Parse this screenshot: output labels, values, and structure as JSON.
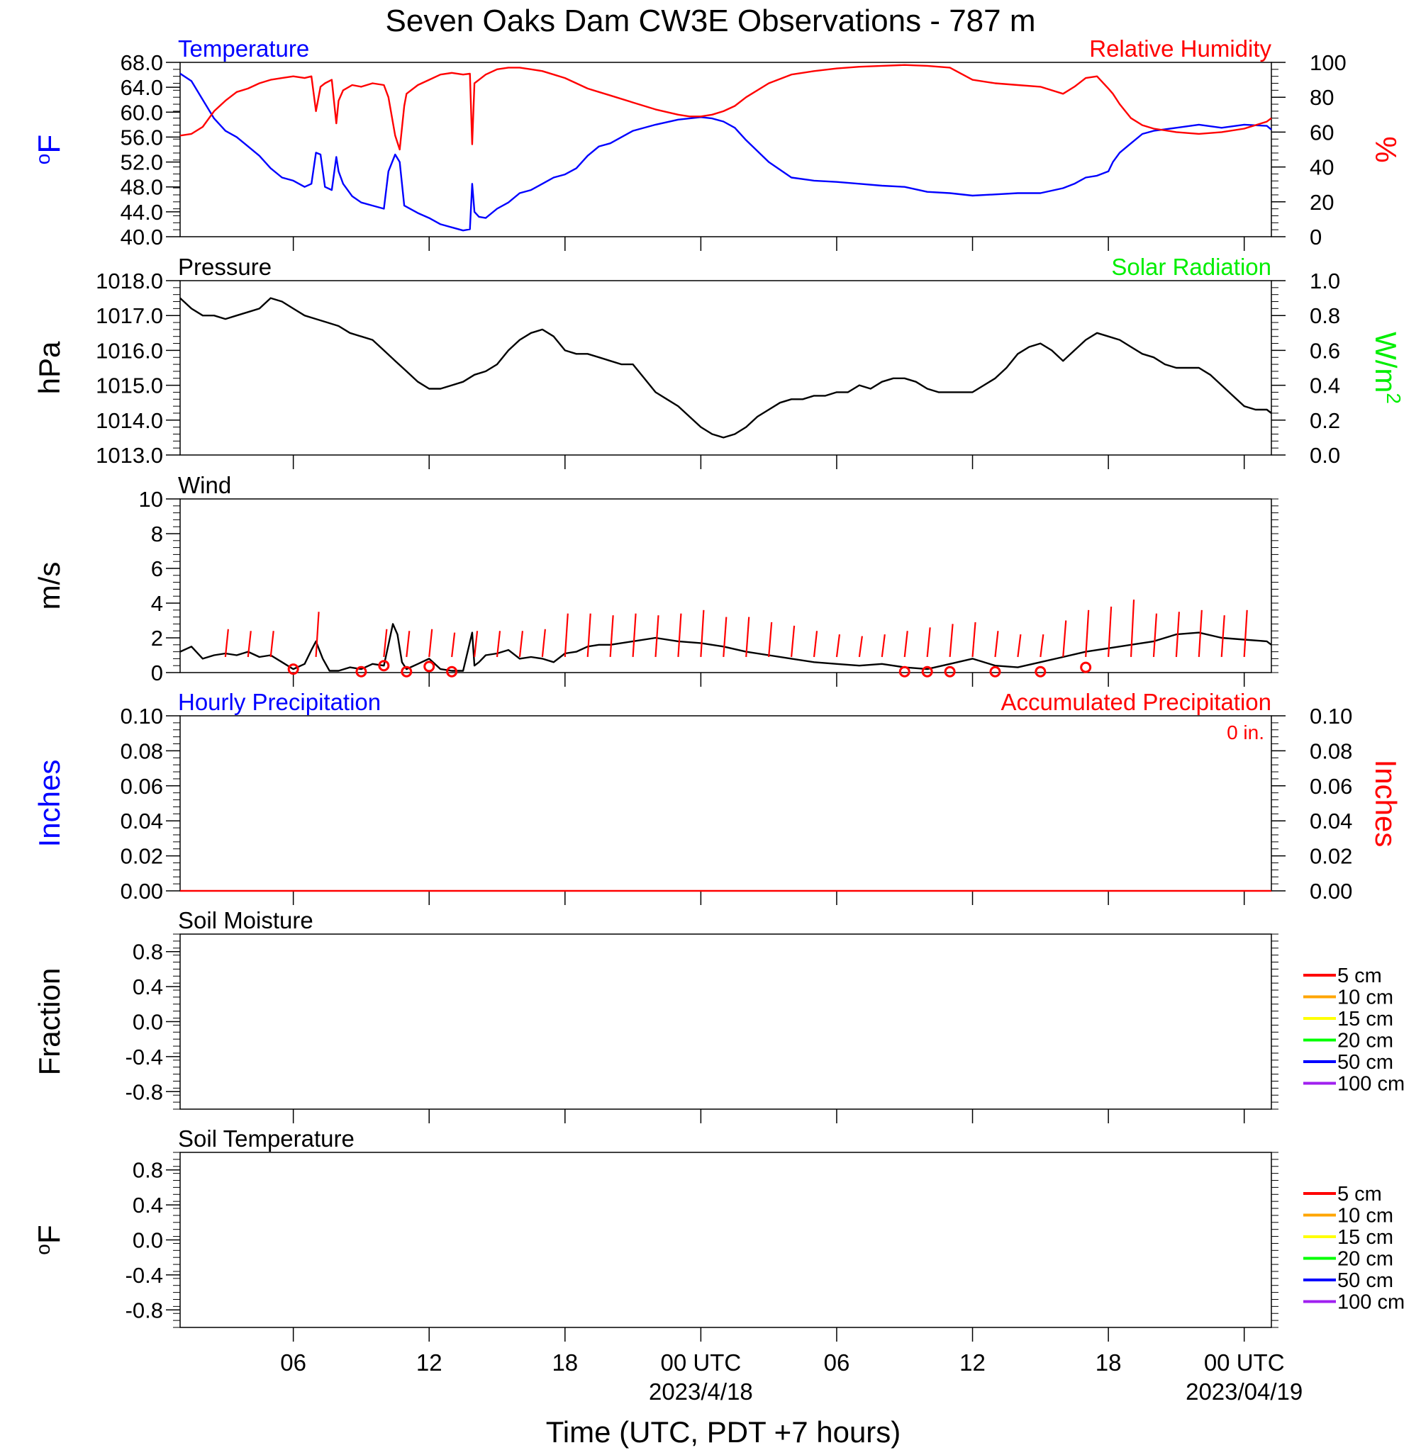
{
  "title": "Seven Oaks Dam CW3E Observations - 787 m",
  "xlabel": "Time (UTC, PDT +7 hours)",
  "xticks": [
    {
      "hour": 6,
      "label": "06",
      "date": ""
    },
    {
      "hour": 12,
      "label": "12",
      "date": ""
    },
    {
      "hour": 18,
      "label": "18",
      "date": ""
    },
    {
      "hour": 24,
      "label": "00 UTC",
      "date": "2023/4/18"
    },
    {
      "hour": 30,
      "label": "06",
      "date": ""
    },
    {
      "hour": 36,
      "label": "12",
      "date": ""
    },
    {
      "hour": 42,
      "label": "18",
      "date": ""
    },
    {
      "hour": 48,
      "label": "00 UTC",
      "date": "2023/04/19"
    }
  ],
  "xrange_hours": [
    1,
    49.2
  ],
  "colors": {
    "temperature": "#0000ff",
    "humidity": "#ff0000",
    "pressure": "#000000",
    "solar": "#00ee00",
    "wind": "#000000",
    "barb": "#ff0000",
    "precip": "#ff0000"
  },
  "legend_items": [
    {
      "label": "5 cm",
      "color": "#ff0000"
    },
    {
      "label": "10 cm",
      "color": "#ffa500"
    },
    {
      "label": "15 cm",
      "color": "#ffff00"
    },
    {
      "label": "20 cm",
      "color": "#00ff00"
    },
    {
      "label": "50 cm",
      "color": "#0000ff"
    },
    {
      "label": "100 cm",
      "color": "#a020f0"
    }
  ],
  "chart_data": [
    {
      "type": "line",
      "panel": "temperature",
      "title_left": "Temperature",
      "title_right": "Relative Humidity",
      "ylabel_left": "°F",
      "ylabel_right": "%",
      "ylim_left": [
        40,
        68
      ],
      "ylim_right": [
        0,
        100
      ],
      "yticks_left": [
        "40.0",
        "44.0",
        "48.0",
        "52.0",
        "56.0",
        "60.0",
        "64.0",
        "68.0"
      ],
      "yticks_right": [
        "0",
        "20",
        "40",
        "60",
        "80",
        "100"
      ],
      "series": [
        {
          "axis": "left",
          "color": "#0000ff",
          "x": [
            1.0,
            1.5,
            2.0,
            2.5,
            3.0,
            3.5,
            4.0,
            4.5,
            5.0,
            5.5,
            6.0,
            6.5,
            6.8,
            7.0,
            7.2,
            7.4,
            7.7,
            7.9,
            8.0,
            8.2,
            8.6,
            9.0,
            9.5,
            10.0,
            10.2,
            10.5,
            10.7,
            10.9,
            11.0,
            11.5,
            12.0,
            12.5,
            13.0,
            13.5,
            13.8,
            13.9,
            14.0,
            14.2,
            14.5,
            15.0,
            15.5,
            16.0,
            16.5,
            17.0,
            17.5,
            18.0,
            18.5,
            19.0,
            19.5,
            20.0,
            21.0,
            22.0,
            23.0,
            23.5,
            24.0,
            24.5,
            25.0,
            25.5,
            26.0,
            27.0,
            28.0,
            29.0,
            30.0,
            31.0,
            32.0,
            33.0,
            34.0,
            35.0,
            36.0,
            37.0,
            38.0,
            39.0,
            40.0,
            40.5,
            41.0,
            41.5,
            42.0,
            42.2,
            42.5,
            43.0,
            43.5,
            44.0,
            45.0,
            46.0,
            47.0,
            48.0,
            49.0,
            49.2
          ],
          "y": [
            66.2,
            65.0,
            62.0,
            59.0,
            57.0,
            56.0,
            54.5,
            53.0,
            51.0,
            49.5,
            49.0,
            48.0,
            48.5,
            53.5,
            53.2,
            48.0,
            47.5,
            52.8,
            50.5,
            48.5,
            46.5,
            45.5,
            45.0,
            44.5,
            50.5,
            53.2,
            52.0,
            45.0,
            44.8,
            43.8,
            43.0,
            42.0,
            41.5,
            41.0,
            41.2,
            48.5,
            44.0,
            43.2,
            43.0,
            44.5,
            45.5,
            47.0,
            47.5,
            48.5,
            49.5,
            50.0,
            51.0,
            53.0,
            54.5,
            55.0,
            57.0,
            58.0,
            58.8,
            59.0,
            59.2,
            59.0,
            58.5,
            57.5,
            55.5,
            52.0,
            49.5,
            49.0,
            48.8,
            48.5,
            48.2,
            48.0,
            47.2,
            47.0,
            46.6,
            46.8,
            47.0,
            47.0,
            47.8,
            48.5,
            49.5,
            49.8,
            50.5,
            52.0,
            53.5,
            55.0,
            56.5,
            57.0,
            57.5,
            58.0,
            57.5,
            58.0,
            57.8,
            57.2
          ]
        },
        {
          "axis": "right",
          "color": "#ff0000",
          "x": [
            1.0,
            1.5,
            2.0,
            2.5,
            3.0,
            3.5,
            4.0,
            4.5,
            5.0,
            5.5,
            6.0,
            6.5,
            6.8,
            7.0,
            7.2,
            7.4,
            7.7,
            7.9,
            8.0,
            8.2,
            8.6,
            9.0,
            9.5,
            10.0,
            10.2,
            10.5,
            10.7,
            10.9,
            11.0,
            11.5,
            12.0,
            12.5,
            13.0,
            13.5,
            13.8,
            13.9,
            14.0,
            14.2,
            14.5,
            15.0,
            15.5,
            16.0,
            16.5,
            17.0,
            17.5,
            18.0,
            18.5,
            19.0,
            19.5,
            20.0,
            21.0,
            22.0,
            23.0,
            23.5,
            24.0,
            24.5,
            25.0,
            25.5,
            26.0,
            27.0,
            28.0,
            29.0,
            30.0,
            31.0,
            32.0,
            33.0,
            34.0,
            35.0,
            36.0,
            37.0,
            38.0,
            39.0,
            40.0,
            40.5,
            41.0,
            41.5,
            42.0,
            42.2,
            42.5,
            43.0,
            43.5,
            44.0,
            45.0,
            46.0,
            47.0,
            48.0,
            49.0,
            49.2
          ],
          "y": [
            58.0,
            59.0,
            63.0,
            72.0,
            78.0,
            83.0,
            85.0,
            88.0,
            90.0,
            91.0,
            92.0,
            91.0,
            92.0,
            72.0,
            86.0,
            88.0,
            90.0,
            65.0,
            78.0,
            84.0,
            87.0,
            86.0,
            88.0,
            87.0,
            80.0,
            58.0,
            50.0,
            75.0,
            82.0,
            87.0,
            90.0,
            93.0,
            94.0,
            93.0,
            93.5,
            53.0,
            88.0,
            90.0,
            93.0,
            96.0,
            97.0,
            97.0,
            96.0,
            95.0,
            93.0,
            91.0,
            88.0,
            85.0,
            83.0,
            81.0,
            77.0,
            73.0,
            70.0,
            69.0,
            69.0,
            70.0,
            72.0,
            75.0,
            80.0,
            88.0,
            93.0,
            95.0,
            96.5,
            97.5,
            98.0,
            98.5,
            98.0,
            97.0,
            90.0,
            88.0,
            87.0,
            86.0,
            82.0,
            86.0,
            91.0,
            92.0,
            85.0,
            82.0,
            76.0,
            68.0,
            64.0,
            62.0,
            60.0,
            59.0,
            60.0,
            62.0,
            66.0,
            68.0
          ]
        }
      ]
    },
    {
      "type": "line",
      "panel": "pressure",
      "title_left": "Pressure",
      "title_right": "Solar Radiation",
      "ylabel_left": "hPa",
      "ylabel_right": "W/m",
      "ylabel_right_sup": "2",
      "ylim_left": [
        1013,
        1018
      ],
      "ylim_right": [
        0,
        1
      ],
      "yticks_left": [
        "1013.0",
        "1014.0",
        "1015.0",
        "1016.0",
        "1017.0",
        "1018.0"
      ],
      "yticks_right": [
        "0.0",
        "0.2",
        "0.4",
        "0.6",
        "0.8",
        "1.0"
      ],
      "series": [
        {
          "axis": "left",
          "color": "#000000",
          "x": [
            1.0,
            1.5,
            2.0,
            2.5,
            3.0,
            3.5,
            4.0,
            4.5,
            5.0,
            5.5,
            6.0,
            6.5,
            7.0,
            7.5,
            8.0,
            8.5,
            9.0,
            9.5,
            10.0,
            10.5,
            11.0,
            11.5,
            12.0,
            12.5,
            13.0,
            13.5,
            14.0,
            14.5,
            15.0,
            15.5,
            16.0,
            16.5,
            17.0,
            17.5,
            18.0,
            18.5,
            19.0,
            19.5,
            20.0,
            20.5,
            21.0,
            21.5,
            22.0,
            22.5,
            23.0,
            23.5,
            24.0,
            24.5,
            25.0,
            25.5,
            26.0,
            26.5,
            27.0,
            27.5,
            28.0,
            28.5,
            29.0,
            29.5,
            30.0,
            30.5,
            31.0,
            31.5,
            32.0,
            32.5,
            33.0,
            33.5,
            34.0,
            34.5,
            35.0,
            35.5,
            36.0,
            36.5,
            37.0,
            37.5,
            38.0,
            38.5,
            39.0,
            39.5,
            40.0,
            40.5,
            41.0,
            41.5,
            42.0,
            42.5,
            43.0,
            43.5,
            44.0,
            44.5,
            45.0,
            45.5,
            46.0,
            46.5,
            47.0,
            47.5,
            48.0,
            48.5,
            49.0,
            49.2
          ],
          "y": [
            1017.5,
            1017.2,
            1017.0,
            1017.0,
            1016.9,
            1017.0,
            1017.1,
            1017.2,
            1017.5,
            1017.4,
            1017.2,
            1017.0,
            1016.9,
            1016.8,
            1016.7,
            1016.5,
            1016.4,
            1016.3,
            1016.0,
            1015.7,
            1015.4,
            1015.1,
            1014.9,
            1014.9,
            1015.0,
            1015.1,
            1015.3,
            1015.4,
            1015.6,
            1016.0,
            1016.3,
            1016.5,
            1016.6,
            1016.4,
            1016.0,
            1015.9,
            1015.9,
            1015.8,
            1015.7,
            1015.6,
            1015.6,
            1015.2,
            1014.8,
            1014.6,
            1014.4,
            1014.1,
            1013.8,
            1013.6,
            1013.5,
            1013.6,
            1013.8,
            1014.1,
            1014.3,
            1014.5,
            1014.6,
            1014.6,
            1014.7,
            1014.7,
            1014.8,
            1014.8,
            1015.0,
            1014.9,
            1015.1,
            1015.2,
            1015.2,
            1015.1,
            1014.9,
            1014.8,
            1014.8,
            1014.8,
            1014.8,
            1015.0,
            1015.2,
            1015.5,
            1015.9,
            1016.1,
            1016.2,
            1016.0,
            1015.7,
            1016.0,
            1016.3,
            1016.5,
            1016.4,
            1016.3,
            1016.1,
            1015.9,
            1015.8,
            1015.6,
            1015.5,
            1015.5,
            1015.5,
            1015.3,
            1015.0,
            1014.7,
            1014.4,
            1014.3,
            1014.3,
            1014.2
          ]
        }
      ]
    },
    {
      "type": "line",
      "panel": "wind",
      "title_left": "Wind",
      "ylabel_left": "m/s",
      "ylim_left": [
        0,
        10
      ],
      "yticks_left": [
        "0",
        "2",
        "4",
        "6",
        "8",
        "10"
      ],
      "series": [
        {
          "axis": "left",
          "color": "#000000",
          "x": [
            1.0,
            1.5,
            2.0,
            2.5,
            3.0,
            3.5,
            4.0,
            4.5,
            5.0,
            5.5,
            6.0,
            6.5,
            6.8,
            7.0,
            7.3,
            7.6,
            8.0,
            8.5,
            9.0,
            9.5,
            10.0,
            10.4,
            10.6,
            10.8,
            11.0,
            11.5,
            12.0,
            12.5,
            13.0,
            13.5,
            13.9,
            14.0,
            14.2,
            14.5,
            15.0,
            15.5,
            16.0,
            16.5,
            17.0,
            17.5,
            18.0,
            18.5,
            19.0,
            19.5,
            20.0,
            21.0,
            22.0,
            23.0,
            24.0,
            25.0,
            26.0,
            27.0,
            28.0,
            29.0,
            30.0,
            31.0,
            32.0,
            33.0,
            34.0,
            35.0,
            36.0,
            37.0,
            38.0,
            39.0,
            40.0,
            41.0,
            42.0,
            43.0,
            44.0,
            45.0,
            46.0,
            47.0,
            48.0,
            49.0,
            49.2
          ],
          "y": [
            1.2,
            1.5,
            0.8,
            1.0,
            1.1,
            1.0,
            1.2,
            0.9,
            1.0,
            0.6,
            0.2,
            0.5,
            1.3,
            1.8,
            0.8,
            0.1,
            0.1,
            0.3,
            0.2,
            0.5,
            0.4,
            2.8,
            2.2,
            0.6,
            0.2,
            0.5,
            0.8,
            0.2,
            0.1,
            0.1,
            2.3,
            0.4,
            0.6,
            1.0,
            1.1,
            1.3,
            0.8,
            0.9,
            0.8,
            0.6,
            1.1,
            1.2,
            1.5,
            1.6,
            1.6,
            1.8,
            2.0,
            1.8,
            1.7,
            1.5,
            1.2,
            1.0,
            0.8,
            0.6,
            0.5,
            0.4,
            0.5,
            0.3,
            0.2,
            0.5,
            0.8,
            0.4,
            0.3,
            0.6,
            0.9,
            1.2,
            1.4,
            1.6,
            1.8,
            2.2,
            2.3,
            2.0,
            1.9,
            1.8,
            1.6
          ]
        },
        {
          "kind": "barbs",
          "color": "#ff0000",
          "x": [
            3,
            4,
            5,
            7,
            10,
            11,
            12,
            13,
            14,
            15,
            16,
            17,
            18,
            19,
            20,
            21,
            22,
            23,
            24,
            25,
            26,
            27,
            28,
            29,
            30,
            31,
            32,
            33,
            34,
            35,
            36,
            37,
            38,
            39,
            40,
            41,
            42,
            43,
            44,
            45,
            46,
            47,
            48
          ],
          "y": [
            2.5,
            2.4,
            2.4,
            3.5,
            2.5,
            2.4,
            2.5,
            2.3,
            2.4,
            2.4,
            2.4,
            2.5,
            3.4,
            3.4,
            3.3,
            3.4,
            3.3,
            3.4,
            3.6,
            3.2,
            3.2,
            2.9,
            2.7,
            2.4,
            2.2,
            2.1,
            2.2,
            2.4,
            2.6,
            2.8,
            2.9,
            2.4,
            2.2,
            2.2,
            3.0,
            3.6,
            3.8,
            4.2,
            3.4,
            3.5,
            3.6,
            3.3,
            3.6
          ]
        },
        {
          "kind": "calm",
          "color": "#ff0000",
          "x": [
            6,
            9,
            10,
            11,
            12,
            13,
            33,
            34,
            35,
            37,
            39,
            41
          ],
          "y": [
            0.2,
            0.05,
            0.4,
            0.05,
            0.35,
            0.05,
            0.05,
            0.05,
            0.05,
            0.05,
            0.05,
            0.3
          ]
        }
      ]
    },
    {
      "type": "line",
      "panel": "precipitation",
      "title_left": "Hourly Precipitation",
      "title_right": "Accumulated Precipitation",
      "annotation": "0 in.",
      "ylabel_left": "Inches",
      "ylabel_right": "Inches",
      "ylim_left": [
        0,
        0.1
      ],
      "ylim_right": [
        0,
        0.1
      ],
      "yticks_left": [
        "0.00",
        "0.02",
        "0.04",
        "0.06",
        "0.08",
        "0.10"
      ],
      "yticks_right": [
        "0.00",
        "0.02",
        "0.04",
        "0.06",
        "0.08",
        "0.10"
      ],
      "series": [
        {
          "axis": "right",
          "color": "#ff0000",
          "x": [
            1.0,
            49.2
          ],
          "y": [
            0,
            0
          ]
        }
      ]
    },
    {
      "type": "line",
      "panel": "soil_moisture",
      "title_left": "Soil Moisture",
      "ylabel_left": "Fraction",
      "ylim_left": [
        -1,
        1
      ],
      "yticks_left": [
        "-0.8",
        "-0.4",
        "0.0",
        "0.4",
        "0.8"
      ],
      "series": []
    },
    {
      "type": "line",
      "panel": "soil_temperature",
      "title_left": "Soil Temperature",
      "ylabel_left": "°F",
      "ylim_left": [
        -1,
        1
      ],
      "yticks_left": [
        "-0.8",
        "-0.4",
        "0.0",
        "0.4",
        "0.8"
      ],
      "series": []
    }
  ]
}
